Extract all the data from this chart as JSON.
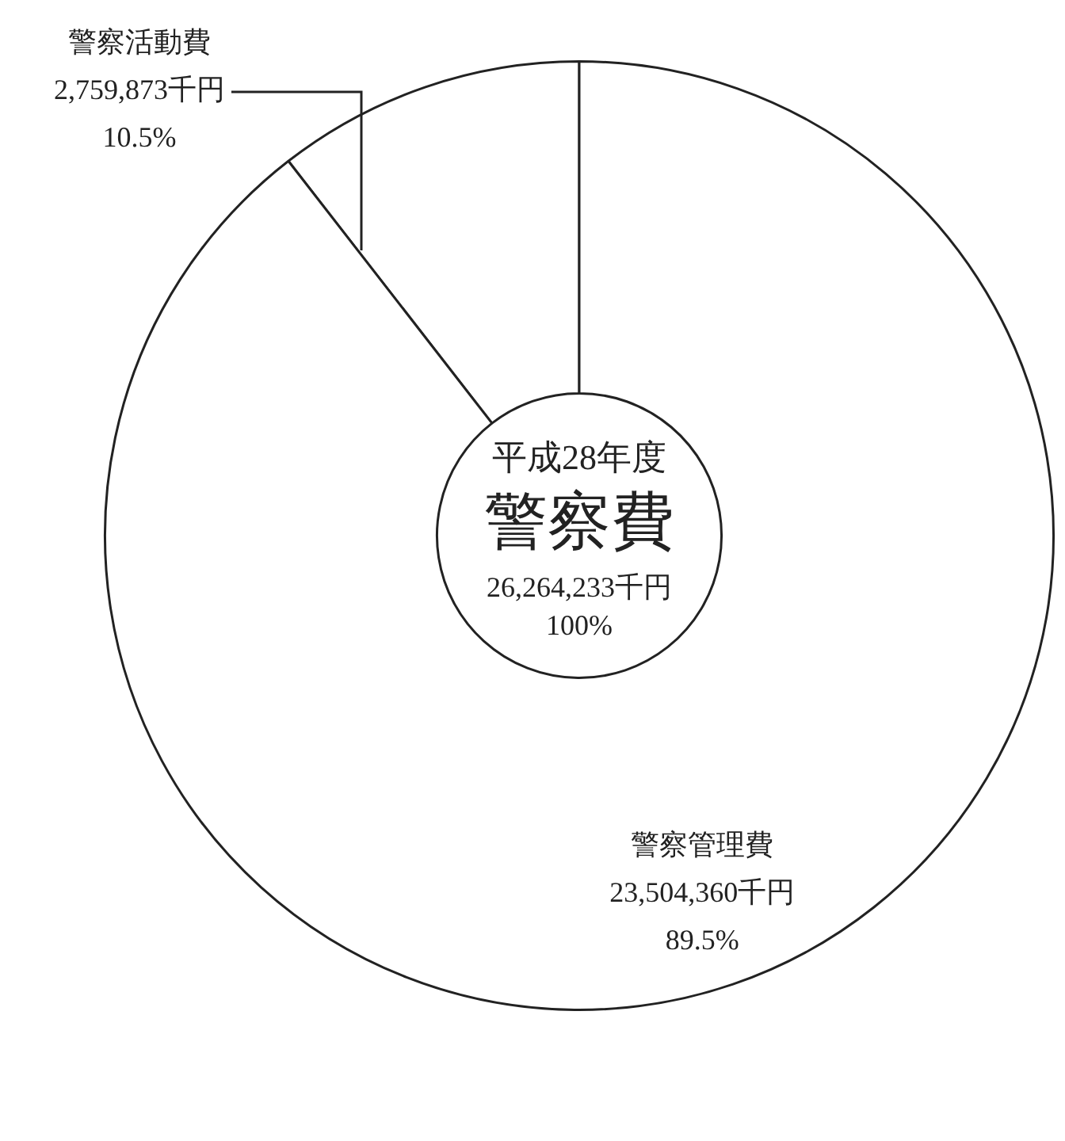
{
  "chart_data": {
    "type": "donut",
    "subtitle": "平成28年度",
    "title": "警察費",
    "annotations": [
      "26,264,233千円",
      "100%"
    ],
    "categories": [
      "警察活動費",
      "警察管理費"
    ],
    "values": [
      2759873,
      23504360
    ],
    "colors": [
      "#ffffff",
      "#ffffff"
    ],
    "value_labels": [
      "2,759,873千円\n10.5%",
      "23,504,360千円\n89.5%"
    ],
    "legend": false
  }
}
